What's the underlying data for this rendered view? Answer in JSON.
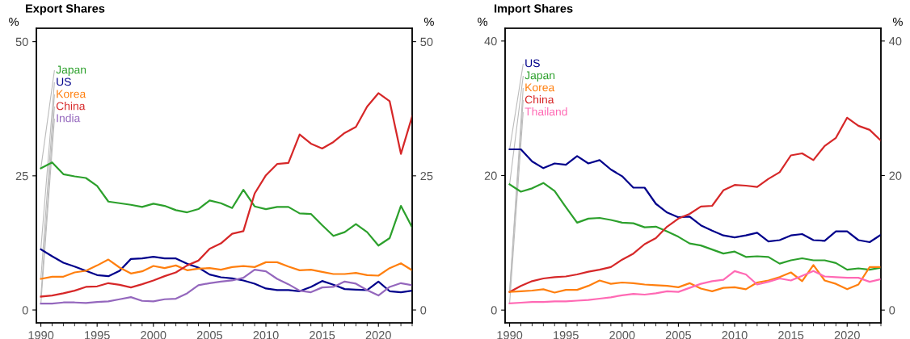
{
  "chart_data": [
    {
      "type": "line",
      "title": "Export Shares",
      "ylabel": "%",
      "y2label": "%",
      "x": [
        1990,
        1991,
        1992,
        1993,
        1994,
        1995,
        1996,
        1997,
        1998,
        1999,
        2000,
        2001,
        2002,
        2003,
        2004,
        2005,
        2006,
        2007,
        2008,
        2009,
        2010,
        2011,
        2012,
        2013,
        2014,
        2015,
        2016,
        2017,
        2018,
        2019,
        2020,
        2021,
        2022,
        2023
      ],
      "xlim": [
        1989.6,
        2023
      ],
      "xticks": [
        1990,
        1995,
        2000,
        2005,
        2010,
        2015,
        2020
      ],
      "ylim": [
        -2.4,
        52.5
      ],
      "yticks": [
        0,
        25,
        50
      ],
      "y2lim": [
        -2.4,
        52.5
      ],
      "y2ticks": [
        0,
        25,
        50
      ],
      "series": [
        {
          "name": "Japan",
          "color": "#2ca02c",
          "values": [
            26.4,
            27.5,
            25.3,
            24.9,
            24.6,
            23.1,
            20.2,
            19.9,
            19.6,
            19.2,
            19.8,
            19.4,
            18.6,
            18.2,
            18.8,
            20.4,
            19.9,
            19.0,
            22.4,
            19.3,
            18.8,
            19.2,
            19.2,
            18.0,
            17.9,
            15.8,
            13.8,
            14.5,
            16.0,
            14.5,
            12.0,
            13.4,
            19.4,
            15.4
          ]
        },
        {
          "name": "US",
          "color": "#00008b",
          "values": [
            11.3,
            10.0,
            8.8,
            8.1,
            7.3,
            6.5,
            6.3,
            7.3,
            9.5,
            9.6,
            9.9,
            9.6,
            9.6,
            8.6,
            7.9,
            6.6,
            6.1,
            5.9,
            5.5,
            4.9,
            4.0,
            3.7,
            3.7,
            3.5,
            4.3,
            5.4,
            4.7,
            3.9,
            3.8,
            3.7,
            5.3,
            3.5,
            3.3,
            3.6
          ]
        },
        {
          "name": "Korea",
          "color": "#ff7f0e",
          "values": [
            5.8,
            6.2,
            6.2,
            7.0,
            7.3,
            8.3,
            9.4,
            7.9,
            6.8,
            7.2,
            8.2,
            7.8,
            8.3,
            7.4,
            7.7,
            7.8,
            7.5,
            8.0,
            8.2,
            8.0,
            8.9,
            8.9,
            8.1,
            7.4,
            7.5,
            7.1,
            6.7,
            6.7,
            6.9,
            6.5,
            6.4,
            7.8,
            8.7,
            7.4
          ]
        },
        {
          "name": "China",
          "color": "#d62728",
          "values": [
            2.5,
            2.7,
            3.1,
            3.6,
            4.3,
            4.4,
            5.0,
            4.7,
            4.2,
            4.8,
            5.5,
            6.3,
            7.0,
            8.3,
            9.2,
            11.4,
            12.4,
            14.2,
            14.7,
            21.7,
            25.1,
            27.2,
            27.4,
            32.7,
            31.0,
            30.1,
            31.3,
            33.0,
            34.1,
            37.9,
            40.4,
            38.9,
            29.1,
            36.1
          ]
        },
        {
          "name": "India",
          "color": "#9467bd",
          "values": [
            1.2,
            1.2,
            1.4,
            1.4,
            1.3,
            1.5,
            1.6,
            2.0,
            2.4,
            1.7,
            1.6,
            2.0,
            2.1,
            3.1,
            4.6,
            5.0,
            5.3,
            5.5,
            6.0,
            7.5,
            7.2,
            5.8,
            4.8,
            3.6,
            3.3,
            4.2,
            4.3,
            5.3,
            4.9,
            3.7,
            2.7,
            4.3,
            5.0,
            4.6
          ]
        }
      ]
    },
    {
      "type": "line",
      "title": "Import Shares",
      "ylabel": "%",
      "y2label": "%",
      "x": [
        1990,
        1991,
        1992,
        1993,
        1994,
        1995,
        1996,
        1997,
        1998,
        1999,
        2000,
        2001,
        2002,
        2003,
        2004,
        2005,
        2006,
        2007,
        2008,
        2009,
        2010,
        2011,
        2012,
        2013,
        2014,
        2015,
        2016,
        2017,
        2018,
        2019,
        2020,
        2021,
        2022,
        2023
      ],
      "xlim": [
        1989.6,
        2023
      ],
      "xticks": [
        1990,
        1995,
        2000,
        2005,
        2010,
        2015,
        2020
      ],
      "ylim": [
        -1.9,
        41.9
      ],
      "yticks": [
        0,
        20,
        40
      ],
      "y2lim": [
        -1.9,
        41.9
      ],
      "y2ticks": [
        0,
        20,
        40
      ],
      "series": [
        {
          "name": "US",
          "color": "#00008b",
          "values": [
            23.9,
            23.9,
            22.1,
            21.1,
            21.8,
            21.6,
            22.9,
            21.8,
            22.3,
            20.9,
            19.9,
            18.2,
            18.2,
            15.8,
            14.5,
            13.8,
            13.9,
            12.6,
            11.8,
            11.1,
            10.8,
            11.1,
            11.5,
            10.2,
            10.4,
            11.1,
            11.3,
            10.4,
            10.3,
            11.7,
            11.7,
            10.4,
            10.1,
            11.2
          ]
        },
        {
          "name": "Japan",
          "color": "#2ca02c",
          "values": [
            18.7,
            17.6,
            18.1,
            18.9,
            17.7,
            15.3,
            13.0,
            13.6,
            13.7,
            13.4,
            13.0,
            12.9,
            12.3,
            12.4,
            11.7,
            10.9,
            9.9,
            9.6,
            9.0,
            8.4,
            8.7,
            7.9,
            8.0,
            7.9,
            6.9,
            7.4,
            7.7,
            7.4,
            7.4,
            7.0,
            6.0,
            6.2,
            6.0,
            6.3
          ]
        },
        {
          "name": "China",
          "color": "#d62728",
          "values": [
            2.7,
            3.6,
            4.3,
            4.7,
            4.9,
            5.0,
            5.3,
            5.7,
            6.0,
            6.4,
            7.5,
            8.4,
            9.8,
            10.7,
            12.4,
            13.6,
            14.3,
            15.4,
            15.5,
            17.8,
            18.6,
            18.5,
            18.3,
            19.5,
            20.5,
            23.0,
            23.3,
            22.3,
            24.4,
            25.6,
            28.6,
            27.4,
            26.8,
            25.2
          ]
        },
        {
          "name": "Korea",
          "color": "#ff7f0e",
          "values": [
            2.7,
            2.8,
            2.9,
            3.1,
            2.6,
            3.0,
            3.0,
            3.6,
            4.4,
            3.9,
            4.1,
            4.0,
            3.8,
            3.7,
            3.6,
            3.4,
            4.0,
            3.2,
            2.8,
            3.3,
            3.4,
            3.1,
            4.1,
            4.4,
            4.9,
            5.6,
            4.3,
            6.7,
            4.4,
            3.9,
            3.1,
            3.8,
            6.4,
            6.4
          ]
        },
        {
          "name": "Thailand",
          "color": "#ff69b4",
          "values": [
            1.0,
            1.1,
            1.2,
            1.2,
            1.3,
            1.3,
            1.4,
            1.5,
            1.7,
            1.9,
            2.2,
            2.4,
            2.3,
            2.5,
            2.8,
            2.7,
            3.3,
            3.9,
            4.3,
            4.5,
            5.8,
            5.3,
            3.8,
            4.2,
            4.7,
            4.4,
            5.1,
            5.8,
            5.0,
            4.9,
            4.8,
            4.8,
            4.2,
            4.6
          ]
        }
      ]
    }
  ]
}
